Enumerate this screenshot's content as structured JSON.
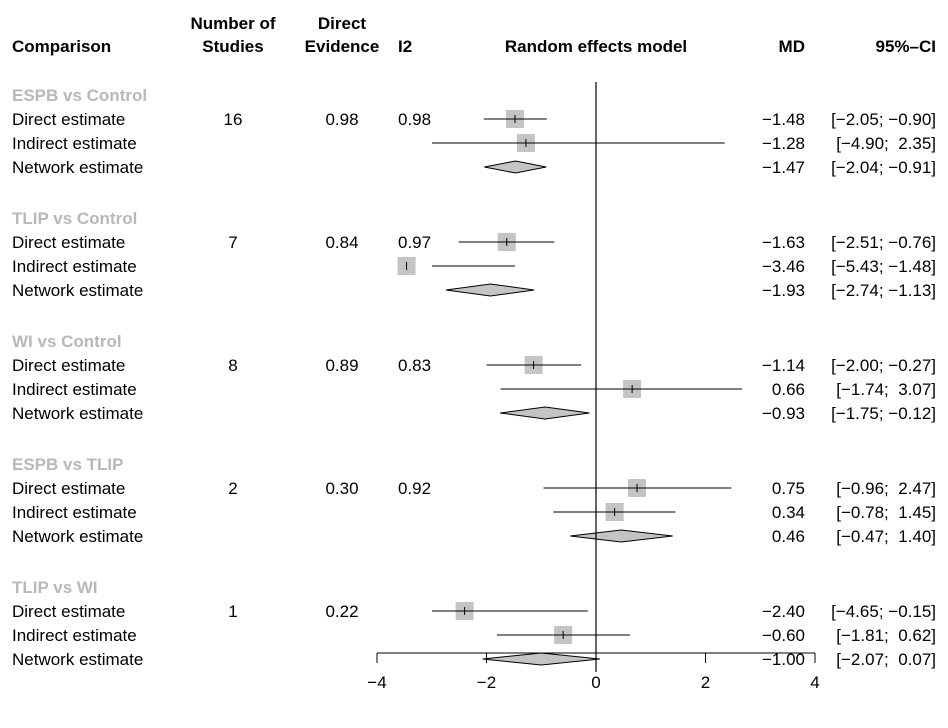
{
  "chart_data": {
    "type": "forest",
    "headers": {
      "comparison": "Comparison",
      "studies": [
        "Number of",
        "Studies"
      ],
      "direct": [
        "Direct",
        "Evidence"
      ],
      "i2": "I2",
      "model": "Random effects model",
      "md": "MD",
      "ci": "95%–CI"
    },
    "xlim": [
      -4,
      4
    ],
    "xticks": [
      -4,
      -2,
      0,
      2,
      4
    ],
    "xtick_labels": [
      "−4",
      "−2",
      "0",
      "2",
      "4"
    ],
    "box_color": "#c4c4c4",
    "diamond_color": "#c4c4c4",
    "groups": [
      {
        "name": "ESPB vs Control",
        "rows": [
          {
            "label": "Direct estimate",
            "studies": "16",
            "direct": "0.98",
            "i2": "0.98",
            "type": "direct",
            "md": -1.48,
            "lo": -2.05,
            "hi": -0.9,
            "md_text": "−1.48",
            "ci_text": "[−2.05; −0.90]"
          },
          {
            "label": "Indirect estimate",
            "studies": "",
            "direct": "",
            "i2": "",
            "type": "indirect",
            "md": -1.28,
            "lo": -4.9,
            "hi": 2.35,
            "md_text": "−1.28",
            "ci_text": "[−4.90;  2.35]"
          },
          {
            "label": "Network estimate",
            "studies": "",
            "direct": "",
            "i2": "",
            "type": "network",
            "md": -1.47,
            "lo": -2.04,
            "hi": -0.91,
            "md_text": "−1.47",
            "ci_text": "[−2.04; −0.91]"
          }
        ]
      },
      {
        "name": "TLIP vs Control",
        "rows": [
          {
            "label": "Direct estimate",
            "studies": "7",
            "direct": "0.84",
            "i2": "0.97",
            "type": "direct",
            "md": -1.63,
            "lo": -2.51,
            "hi": -0.76,
            "md_text": "−1.63",
            "ci_text": "[−2.51; −0.76]"
          },
          {
            "label": "Indirect estimate",
            "studies": "",
            "direct": "",
            "i2": "",
            "type": "indirect",
            "md": -3.46,
            "lo": -5.43,
            "hi": -1.48,
            "md_text": "−3.46",
            "ci_text": "[−5.43; −1.48]"
          },
          {
            "label": "Network estimate",
            "studies": "",
            "direct": "",
            "i2": "",
            "type": "network",
            "md": -1.93,
            "lo": -2.74,
            "hi": -1.13,
            "md_text": "−1.93",
            "ci_text": "[−2.74; −1.13]"
          }
        ]
      },
      {
        "name": "WI vs Control",
        "rows": [
          {
            "label": "Direct estimate",
            "studies": "8",
            "direct": "0.89",
            "i2": "0.83",
            "type": "direct",
            "md": -1.14,
            "lo": -2.0,
            "hi": -0.27,
            "md_text": "−1.14",
            "ci_text": "[−2.00; −0.27]"
          },
          {
            "label": "Indirect estimate",
            "studies": "",
            "direct": "",
            "i2": "",
            "type": "indirect",
            "md": 0.66,
            "lo": -1.74,
            "hi": 3.07,
            "md_text": "0.66",
            "ci_text": "[−1.74;  3.07]"
          },
          {
            "label": "Network estimate",
            "studies": "",
            "direct": "",
            "i2": "",
            "type": "network",
            "md": -0.93,
            "lo": -1.75,
            "hi": -0.12,
            "md_text": "−0.93",
            "ci_text": "[−1.75; −0.12]"
          }
        ]
      },
      {
        "name": "ESPB vs TLIP",
        "rows": [
          {
            "label": "Direct estimate",
            "studies": "2",
            "direct": "0.30",
            "i2": "0.92",
            "type": "direct",
            "md": 0.75,
            "lo": -0.96,
            "hi": 2.47,
            "md_text": "0.75",
            "ci_text": "[−0.96;  2.47]"
          },
          {
            "label": "Indirect estimate",
            "studies": "",
            "direct": "",
            "i2": "",
            "type": "indirect",
            "md": 0.34,
            "lo": -0.78,
            "hi": 1.45,
            "md_text": "0.34",
            "ci_text": "[−0.78;  1.45]"
          },
          {
            "label": "Network estimate",
            "studies": "",
            "direct": "",
            "i2": "",
            "type": "network",
            "md": 0.46,
            "lo": -0.47,
            "hi": 1.4,
            "md_text": "0.46",
            "ci_text": "[−0.47;  1.40]"
          }
        ]
      },
      {
        "name": "TLIP vs WI",
        "rows": [
          {
            "label": "Direct estimate",
            "studies": "1",
            "direct": "0.22",
            "i2": "",
            "type": "direct",
            "md": -2.4,
            "lo": -4.65,
            "hi": -0.15,
            "md_text": "−2.40",
            "ci_text": "[−4.65; −0.15]"
          },
          {
            "label": "Indirect estimate",
            "studies": "",
            "direct": "",
            "i2": "",
            "type": "indirect",
            "md": -0.6,
            "lo": -1.81,
            "hi": 0.62,
            "md_text": "−0.60",
            "ci_text": "[−1.81;  0.62]"
          },
          {
            "label": "Network estimate",
            "studies": "",
            "direct": "",
            "i2": "",
            "type": "network",
            "md": -1.0,
            "lo": -2.07,
            "hi": 0.07,
            "md_text": "−1.00",
            "ci_text": "[−2.07;  0.07]"
          }
        ]
      }
    ]
  }
}
